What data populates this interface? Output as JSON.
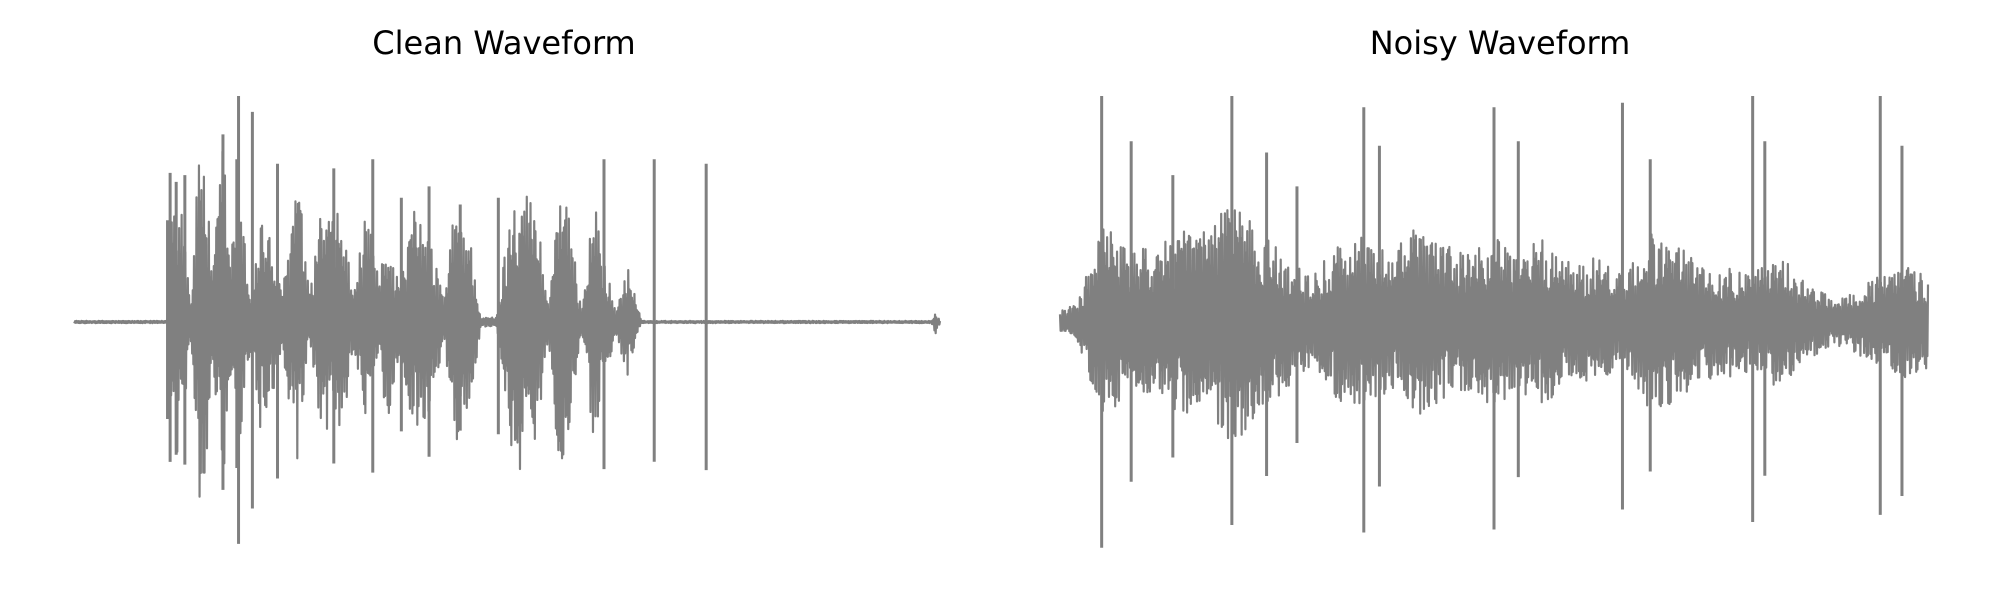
{
  "chart_data": [
    {
      "type": "line",
      "title": "Clean Waveform",
      "xlabel": "",
      "ylabel": "",
      "axes_visible": false,
      "grid": false,
      "ylim": [
        -1,
        1
      ],
      "duration": 1.0,
      "color": "#808080",
      "envelope_x": [
        0.0,
        0.108,
        0.109,
        0.115,
        0.125,
        0.135,
        0.147,
        0.16,
        0.172,
        0.18,
        0.19,
        0.205,
        0.215,
        0.225,
        0.24,
        0.258,
        0.272,
        0.286,
        0.296,
        0.31,
        0.322,
        0.338,
        0.352,
        0.362,
        0.376,
        0.392,
        0.41,
        0.428,
        0.44,
        0.455,
        0.47,
        0.488,
        0.51,
        0.535,
        0.548,
        0.56,
        0.572,
        0.586,
        0.6,
        0.612,
        0.625,
        0.64,
        0.655,
        0.668,
        0.678,
        0.686,
        0.7,
        0.8,
        0.99,
        0.995,
        1.0
      ],
      "envelope_y": [
        0.005,
        0.005,
        0.45,
        0.65,
        0.55,
        0.1,
        0.95,
        0.2,
        0.85,
        0.3,
        0.6,
        0.1,
        0.5,
        0.4,
        0.12,
        0.7,
        0.1,
        0.55,
        0.45,
        0.5,
        0.12,
        0.5,
        0.18,
        0.45,
        0.15,
        0.5,
        0.4,
        0.1,
        0.55,
        0.45,
        0.02,
        0.02,
        0.7,
        0.5,
        0.06,
        0.7,
        0.45,
        0.06,
        0.55,
        0.3,
        0.05,
        0.25,
        0.005,
        0.005,
        0.005,
        0.005,
        0.005,
        0.005,
        0.005,
        0.05,
        0.005
      ],
      "spikes": [
        {
          "x": 0.108,
          "y": 0.45
        },
        {
          "x": 0.111,
          "y": 0.66
        },
        {
          "x": 0.118,
          "y": 0.62
        },
        {
          "x": 0.128,
          "y": 0.65
        },
        {
          "x": 0.172,
          "y": 0.83
        },
        {
          "x": 0.188,
          "y": 0.72
        },
        {
          "x": 0.19,
          "y": 1.0
        },
        {
          "x": 0.206,
          "y": 0.93
        },
        {
          "x": 0.235,
          "y": 0.7
        },
        {
          "x": 0.3,
          "y": 0.68
        },
        {
          "x": 0.345,
          "y": 0.72
        },
        {
          "x": 0.378,
          "y": 0.55
        },
        {
          "x": 0.41,
          "y": 0.6
        },
        {
          "x": 0.446,
          "y": 0.52
        },
        {
          "x": 0.49,
          "y": 0.55
        },
        {
          "x": 0.612,
          "y": 0.72
        },
        {
          "x": 0.67,
          "y": 0.72
        },
        {
          "x": 0.73,
          "y": 0.7
        }
      ]
    },
    {
      "type": "line",
      "title": "Noisy Waveform",
      "xlabel": "",
      "ylabel": "",
      "axes_visible": false,
      "grid": false,
      "ylim": [
        -1,
        1
      ],
      "duration": 1.0,
      "color": "#808080",
      "envelope_x": [
        0.0,
        0.02,
        0.05,
        0.08,
        0.11,
        0.14,
        0.17,
        0.2,
        0.23,
        0.26,
        0.29,
        0.32,
        0.35,
        0.38,
        0.41,
        0.44,
        0.47,
        0.5,
        0.53,
        0.56,
        0.59,
        0.62,
        0.65,
        0.68,
        0.71,
        0.74,
        0.77,
        0.8,
        0.83,
        0.86,
        0.89,
        0.92,
        0.95,
        0.98,
        1.0
      ],
      "envelope_y": [
        0.05,
        0.08,
        0.45,
        0.3,
        0.35,
        0.4,
        0.42,
        0.55,
        0.4,
        0.3,
        0.2,
        0.35,
        0.38,
        0.3,
        0.42,
        0.35,
        0.3,
        0.38,
        0.32,
        0.38,
        0.25,
        0.3,
        0.2,
        0.4,
        0.35,
        0.25,
        0.25,
        0.22,
        0.3,
        0.18,
        0.1,
        0.15,
        0.22,
        0.25,
        0.2
      ],
      "spikes": [
        {
          "x": 0.048,
          "y": 1.0
        },
        {
          "x": 0.082,
          "y": 0.8
        },
        {
          "x": 0.13,
          "y": 0.65
        },
        {
          "x": 0.198,
          "y": 1.0
        },
        {
          "x": 0.238,
          "y": 0.75
        },
        {
          "x": 0.273,
          "y": 0.6
        },
        {
          "x": 0.35,
          "y": 0.95
        },
        {
          "x": 0.368,
          "y": 0.78
        },
        {
          "x": 0.5,
          "y": 0.95
        },
        {
          "x": 0.528,
          "y": 0.8
        },
        {
          "x": 0.648,
          "y": 0.97
        },
        {
          "x": 0.68,
          "y": 0.72
        },
        {
          "x": 0.798,
          "y": 1.0
        },
        {
          "x": 0.812,
          "y": 0.8
        },
        {
          "x": 0.945,
          "y": 1.0
        },
        {
          "x": 0.97,
          "y": 0.78
        }
      ]
    }
  ]
}
